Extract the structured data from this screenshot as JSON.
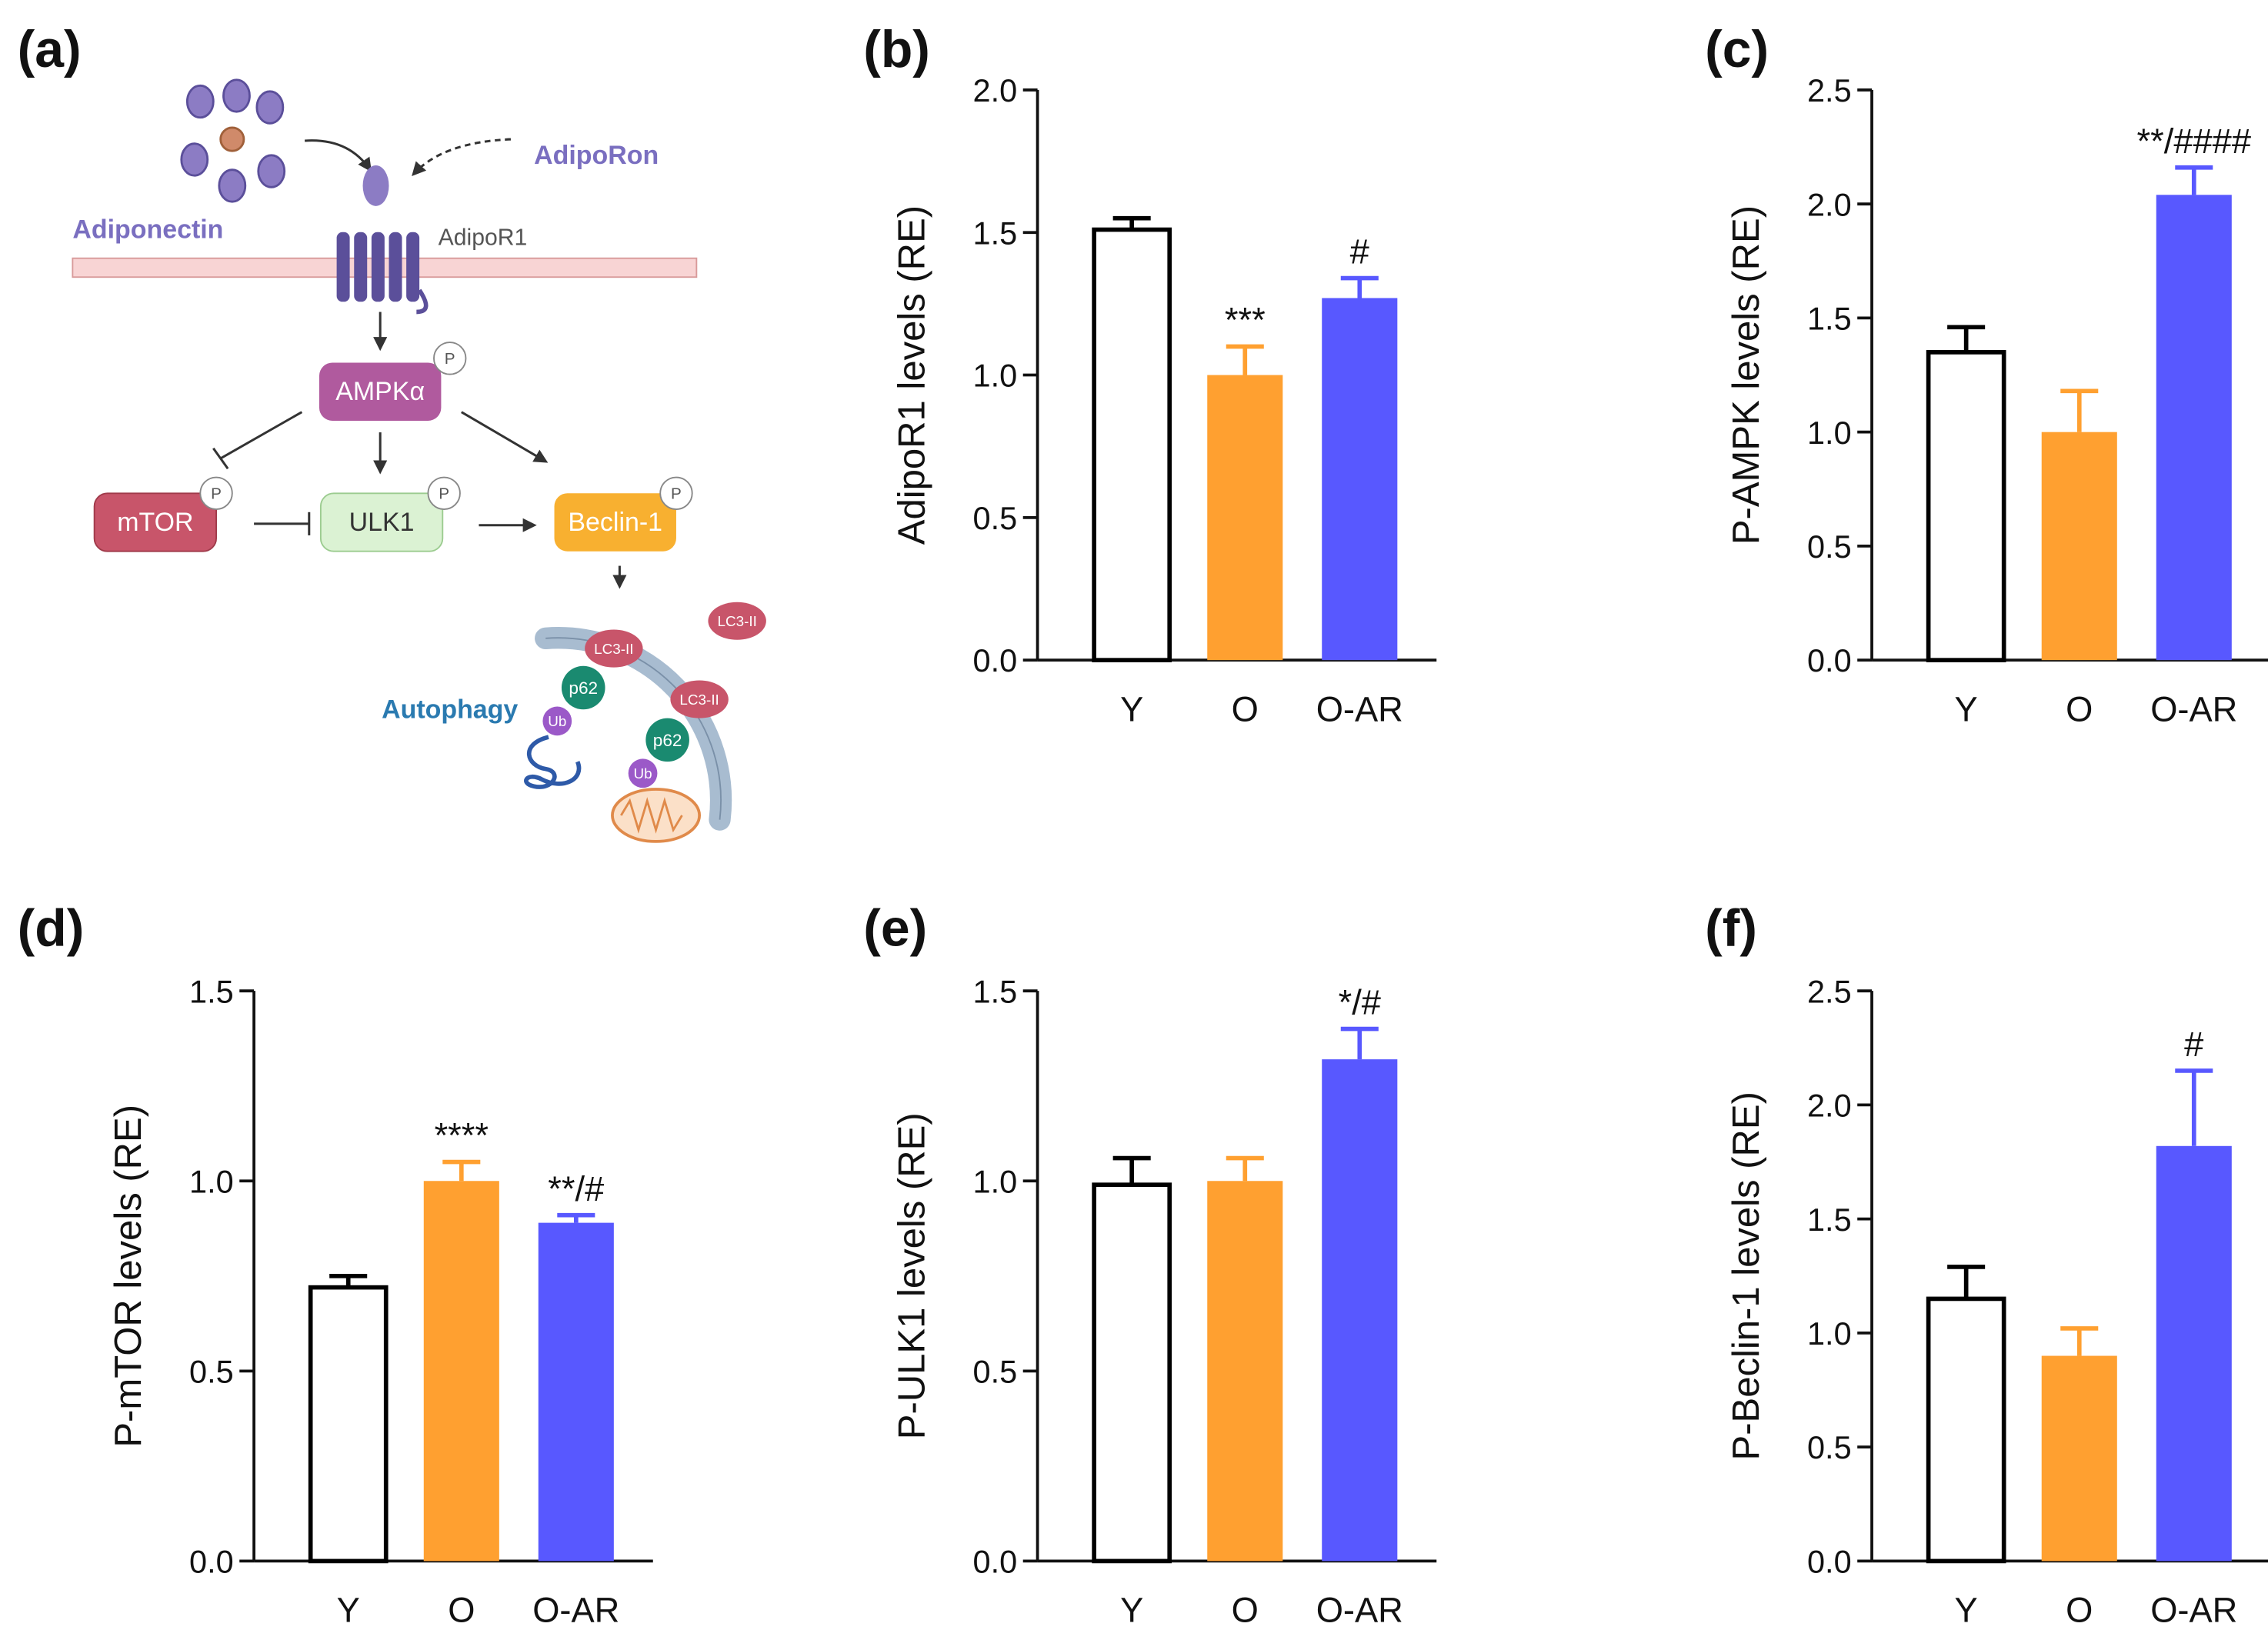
{
  "diagram": {
    "label": "(a)",
    "adiporon": "AdipoRon",
    "adiponectin": "Adiponectin",
    "receptor": "AdipoR1",
    "ampk": "AMPKα",
    "phospho": "P",
    "mtor": "mTOR",
    "ulk1": "ULK1",
    "beclin": "Beclin-1",
    "lc3": "LC3-II",
    "p62": "p62",
    "ub": "Ub",
    "autophagy": "Autophagy"
  },
  "chart_data": [
    {
      "type": "bar",
      "panel_label": "(b)",
      "y_label": "AdipoR1 levels (RE)",
      "categories": [
        "Y",
        "O",
        "O-AR"
      ],
      "values": [
        1.51,
        1.0,
        1.27
      ],
      "errors": [
        0.04,
        0.1,
        0.07
      ],
      "annotations": [
        null,
        "***",
        "#"
      ],
      "colors": [
        "#ffffff",
        "#ffa030",
        "#5858ff"
      ],
      "edge_colors": [
        "#000000",
        "#ffa030",
        "#5858ff"
      ],
      "ylim": [
        0,
        2
      ],
      "yticks": [
        {
          "value": 0,
          "label": "0.0"
        },
        0.5,
        {
          "value": 1,
          "label": "1.0"
        },
        1.5,
        {
          "value": 2,
          "label": "2.0"
        }
      ]
    },
    {
      "type": "bar",
      "panel_label": "(c)",
      "y_label": "P-AMPK levels (RE)",
      "categories": [
        "Y",
        "O",
        "O-AR"
      ],
      "values": [
        1.35,
        1.0,
        2.04
      ],
      "errors": [
        0.11,
        0.18,
        0.12
      ],
      "annotations": [
        null,
        null,
        "**/####"
      ],
      "colors": [
        "#ffffff",
        "#ffa030",
        "#5858ff"
      ],
      "edge_colors": [
        "#000000",
        "#ffa030",
        "#5858ff"
      ],
      "ylim": [
        0,
        2.5
      ],
      "yticks": [
        {
          "value": 0,
          "label": "0.0"
        },
        0.5,
        {
          "value": 1,
          "label": "1.0"
        },
        1.5,
        {
          "value": 2,
          "label": "2.0"
        },
        2.5
      ]
    },
    {
      "type": "bar",
      "panel_label": "(d)",
      "y_label": "P-mTOR levels (RE)",
      "categories": [
        "Y",
        "O",
        "O-AR"
      ],
      "values": [
        0.72,
        1.0,
        0.89
      ],
      "errors": [
        0.03,
        0.05,
        0.02
      ],
      "annotations": [
        null,
        "****",
        "**/#"
      ],
      "colors": [
        "#ffffff",
        "#ffa030",
        "#5858ff"
      ],
      "edge_colors": [
        "#000000",
        "#ffa030",
        "#5858ff"
      ],
      "ylim": [
        0,
        1.5
      ],
      "yticks": [
        {
          "value": 0,
          "label": "0.0"
        },
        0.5,
        {
          "value": 1,
          "label": "1.0"
        },
        1.5
      ]
    },
    {
      "type": "bar",
      "panel_label": "(e)",
      "y_label": "P-ULK1 levels (RE)",
      "categories": [
        "Y",
        "O",
        "O-AR"
      ],
      "values": [
        0.99,
        1.0,
        1.32
      ],
      "errors": [
        0.07,
        0.06,
        0.08
      ],
      "annotations": [
        null,
        null,
        "*/#"
      ],
      "colors": [
        "#ffffff",
        "#ffa030",
        "#5858ff"
      ],
      "edge_colors": [
        "#000000",
        "#ffa030",
        "#5858ff"
      ],
      "ylim": [
        0,
        1.5
      ],
      "yticks": [
        {
          "value": 0,
          "label": "0.0"
        },
        0.5,
        {
          "value": 1,
          "label": "1.0"
        },
        1.5
      ]
    },
    {
      "type": "bar",
      "panel_label": "(f)",
      "y_label": "P-Beclin-1 levels (RE)",
      "categories": [
        "Y",
        "O",
        "O-AR"
      ],
      "values": [
        1.15,
        0.9,
        1.82
      ],
      "errors": [
        0.14,
        0.12,
        0.33
      ],
      "annotations": [
        null,
        null,
        "#"
      ],
      "colors": [
        "#ffffff",
        "#ffa030",
        "#5858ff"
      ],
      "edge_colors": [
        "#000000",
        "#ffa030",
        "#5858ff"
      ],
      "ylim": [
        0,
        2.5
      ],
      "yticks": [
        {
          "value": 0,
          "label": "0.0"
        },
        0.5,
        {
          "value": 1,
          "label": "1.0"
        },
        1.5,
        {
          "value": 2,
          "label": "2.0"
        },
        2.5
      ]
    }
  ]
}
